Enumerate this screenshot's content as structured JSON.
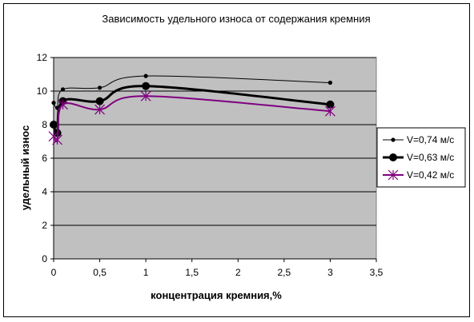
{
  "chart_data": {
    "type": "line",
    "title": "Зависимость удельного износа от содержания кремния",
    "xlabel": "концентрация кремния,%",
    "ylabel": "удельный износ",
    "xlim": [
      0,
      3.5
    ],
    "ylim": [
      0,
      12
    ],
    "xticks": [
      0,
      0.5,
      1,
      1.5,
      2,
      2.5,
      3,
      3.5
    ],
    "xtick_labels": [
      "0",
      "0,5",
      "1",
      "1,5",
      "2",
      "2,5",
      "3",
      "3,5"
    ],
    "yticks": [
      0,
      2,
      4,
      6,
      8,
      10,
      12
    ],
    "ytick_labels": [
      "0",
      "2",
      "4",
      "6",
      "8",
      "10",
      "12"
    ],
    "grid": "horizontal",
    "plot_background": "#c0c0c0",
    "legend_position": "right",
    "series": [
      {
        "name": "V=0,74 м/с",
        "color": "#000000",
        "line_width": 1,
        "marker": "small-dot",
        "points": [
          [
            0,
            9.3
          ],
          [
            0.04,
            9.0
          ],
          [
            0.1,
            10.1
          ],
          [
            0.5,
            10.2
          ],
          [
            1.0,
            10.9
          ],
          [
            3.0,
            10.5
          ]
        ]
      },
      {
        "name": "V=0,63 м/с",
        "color": "#000000",
        "line_width": 3,
        "marker": "large-dot",
        "points": [
          [
            0,
            8.0
          ],
          [
            0.04,
            7.5
          ],
          [
            0.1,
            9.4
          ],
          [
            0.5,
            9.4
          ],
          [
            1.0,
            10.3
          ],
          [
            3.0,
            9.2
          ]
        ]
      },
      {
        "name": "V=0,42 м/с",
        "color": "#800080",
        "line_width": 2,
        "marker": "star",
        "points": [
          [
            0,
            7.3
          ],
          [
            0.04,
            7.1
          ],
          [
            0.1,
            9.2
          ],
          [
            0.5,
            8.9
          ],
          [
            1.0,
            9.7
          ],
          [
            3.0,
            8.8
          ]
        ]
      }
    ]
  }
}
